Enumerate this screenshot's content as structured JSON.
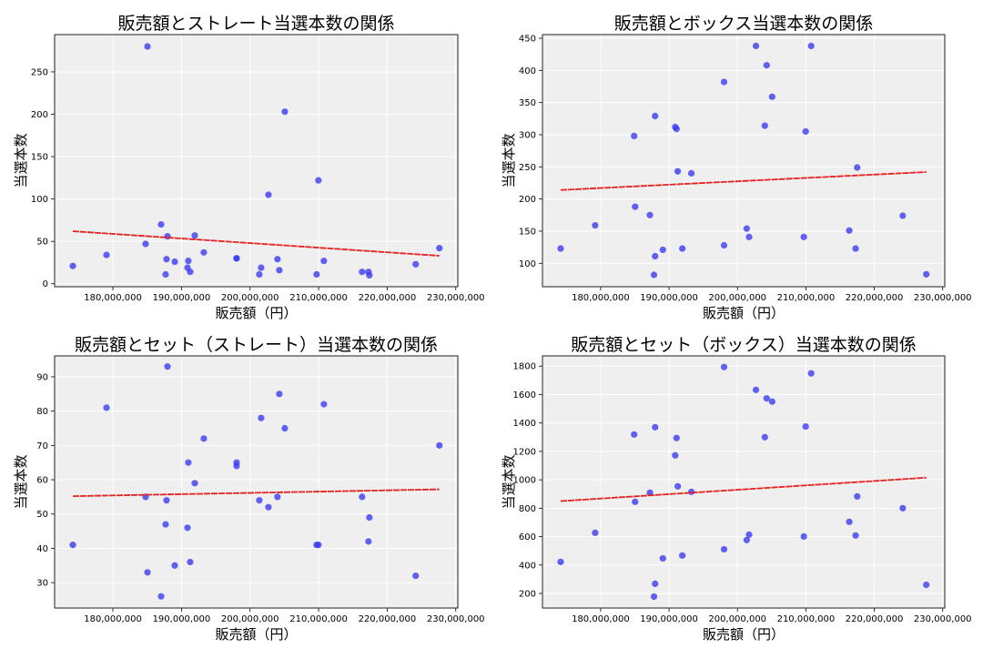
{
  "chart_data": [
    {
      "type": "scatter",
      "title": "販売額とストレート当選本数の関係",
      "xlabel": "販売額（円）",
      "ylabel": "当選本数",
      "xlim": [
        171500000,
        230300000
      ],
      "ylim": [
        -3.5,
        294
      ],
      "xticks": [
        180000000,
        190000000,
        200000000,
        210000000,
        220000000,
        230000000
      ],
      "xtick_labels": [
        "180,000,000",
        "190,000,000",
        "200,000,000",
        "210,000,000",
        "220,000,000",
        "230,000,000"
      ],
      "yticks": [
        0,
        50,
        100,
        150,
        200,
        250
      ],
      "ytick_labels": [
        "0",
        "50",
        "100",
        "150",
        "200",
        "250"
      ],
      "grid": true,
      "points": [
        [
          174160000,
          21
        ],
        [
          179070000,
          34
        ],
        [
          184770000,
          47
        ],
        [
          185040000,
          280
        ],
        [
          187030000,
          70
        ],
        [
          187960000,
          56
        ],
        [
          187820000,
          29
        ],
        [
          187690000,
          11
        ],
        [
          189020000,
          26
        ],
        [
          191000000,
          27
        ],
        [
          190880000,
          19
        ],
        [
          191270000,
          14
        ],
        [
          191940000,
          57
        ],
        [
          193260000,
          37
        ],
        [
          198040000,
          30
        ],
        [
          198040000,
          30
        ],
        [
          201350000,
          11
        ],
        [
          201620000,
          19
        ],
        [
          202680000,
          105
        ],
        [
          204000000,
          29
        ],
        [
          204270000,
          16
        ],
        [
          205070000,
          203
        ],
        [
          209970000,
          122
        ],
        [
          209710000,
          11
        ],
        [
          210770000,
          27
        ],
        [
          216340000,
          14
        ],
        [
          217270000,
          14
        ],
        [
          217400000,
          10
        ],
        [
          224160000,
          23
        ],
        [
          227610000,
          42
        ]
      ],
      "trend": [
        [
          174160000,
          62
        ],
        [
          227610000,
          33
        ]
      ]
    },
    {
      "type": "scatter",
      "title": "販売額とボックス当選本数の関係",
      "xlabel": "販売額（円）",
      "ylabel": "当選本数",
      "xlim": [
        171500000,
        230300000
      ],
      "ylim": [
        63.6,
        455.7
      ],
      "xticks": [
        180000000,
        190000000,
        200000000,
        210000000,
        220000000,
        230000000
      ],
      "xtick_labels": [
        "180,000,000",
        "190,000,000",
        "200,000,000",
        "210,000,000",
        "220,000,000",
        "230,000,000"
      ],
      "yticks": [
        100,
        150,
        200,
        250,
        300,
        350,
        400,
        450
      ],
      "ytick_labels": [
        "100",
        "150",
        "200",
        "250",
        "300",
        "350",
        "400",
        "450"
      ],
      "grid": true,
      "points": [
        [
          174160000,
          123
        ],
        [
          179200000,
          159
        ],
        [
          184900000,
          298
        ],
        [
          185040000,
          188
        ],
        [
          187200000,
          175
        ],
        [
          187960000,
          329
        ],
        [
          187960000,
          111
        ],
        [
          187800000,
          82
        ],
        [
          189100000,
          121
        ],
        [
          190900000,
          312
        ],
        [
          191100000,
          309
        ],
        [
          191270000,
          243
        ],
        [
          191940000,
          123
        ],
        [
          193260000,
          240
        ],
        [
          198040000,
          382
        ],
        [
          198040000,
          128
        ],
        [
          201350000,
          154
        ],
        [
          201700000,
          141
        ],
        [
          202700000,
          438
        ],
        [
          204000000,
          314
        ],
        [
          204270000,
          408
        ],
        [
          205070000,
          359
        ],
        [
          209970000,
          305
        ],
        [
          209700000,
          141
        ],
        [
          210770000,
          438
        ],
        [
          216340000,
          151
        ],
        [
          217270000,
          123
        ],
        [
          217500000,
          249
        ],
        [
          224160000,
          174
        ],
        [
          227600000,
          83
        ]
      ],
      "trend": [
        [
          174160000,
          214
        ],
        [
          227610000,
          242
        ]
      ]
    },
    {
      "type": "scatter",
      "title": "販売額とセット（ストレート）当選本数の関係",
      "xlabel": "販売額（円）",
      "ylabel": "当選本数",
      "xlim": [
        171500000,
        230300000
      ],
      "ylim": [
        22.6,
        96.1
      ],
      "xticks": [
        180000000,
        190000000,
        200000000,
        210000000,
        220000000,
        230000000
      ],
      "xtick_labels": [
        "180,000,000",
        "190,000,000",
        "200,000,000",
        "210,000,000",
        "220,000,000",
        "230,000,000"
      ],
      "yticks": [
        30,
        40,
        50,
        60,
        70,
        80,
        90
      ],
      "ytick_labels": [
        "30",
        "40",
        "50",
        "60",
        "70",
        "80",
        "90"
      ],
      "grid": true,
      "points": [
        [
          174160000,
          41
        ],
        [
          179070000,
          81
        ],
        [
          184770000,
          55
        ],
        [
          185040000,
          33
        ],
        [
          187030000,
          26
        ],
        [
          187960000,
          93
        ],
        [
          187820000,
          54
        ],
        [
          187690000,
          47
        ],
        [
          189020000,
          35
        ],
        [
          191000000,
          65
        ],
        [
          190880000,
          46
        ],
        [
          191270000,
          36
        ],
        [
          191940000,
          59
        ],
        [
          193260000,
          72
        ],
        [
          198040000,
          65
        ],
        [
          198040000,
          64
        ],
        [
          201350000,
          54
        ],
        [
          201620000,
          78
        ],
        [
          202680000,
          52
        ],
        [
          204000000,
          55
        ],
        [
          204270000,
          85
        ],
        [
          205070000,
          75
        ],
        [
          209970000,
          41
        ],
        [
          209710000,
          41
        ],
        [
          210770000,
          82
        ],
        [
          216340000,
          55
        ],
        [
          217270000,
          42
        ],
        [
          217400000,
          49
        ],
        [
          224160000,
          32
        ],
        [
          227610000,
          70
        ]
      ],
      "trend": [
        [
          174160000,
          55.2
        ],
        [
          227610000,
          57.2
        ]
      ]
    },
    {
      "type": "scatter",
      "title": "販売額とセット（ボックス）当選本数の関係",
      "xlabel": "販売額（円）",
      "ylabel": "当選本数",
      "xlim": [
        171500000,
        230300000
      ],
      "ylim": [
        97.5,
        1872
      ],
      "xticks": [
        180000000,
        190000000,
        200000000,
        210000000,
        220000000,
        230000000
      ],
      "xtick_labels": [
        "180,000,000",
        "190,000,000",
        "200,000,000",
        "210,000,000",
        "220,000,000",
        "230,000,000"
      ],
      "yticks": [
        200,
        400,
        600,
        800,
        1000,
        1200,
        1400,
        1600,
        1800
      ],
      "ytick_labels": [
        "200",
        "400",
        "600",
        "800",
        "1000",
        "1200",
        "1400",
        "1600",
        "1800"
      ],
      "grid": true,
      "points": [
        [
          174160000,
          422
        ],
        [
          179200000,
          627
        ],
        [
          184900000,
          1319
        ],
        [
          185040000,
          845
        ],
        [
          187200000,
          909
        ],
        [
          187960000,
          1370
        ],
        [
          187960000,
          268
        ],
        [
          187800000,
          178
        ],
        [
          189100000,
          447
        ],
        [
          190900000,
          1172
        ],
        [
          191100000,
          1294
        ],
        [
          191270000,
          954
        ],
        [
          191940000,
          467
        ],
        [
          193260000,
          915
        ],
        [
          198040000,
          1794
        ],
        [
          198040000,
          511
        ],
        [
          201350000,
          576
        ],
        [
          201700000,
          614
        ],
        [
          202700000,
          1633
        ],
        [
          204000000,
          1300
        ],
        [
          204270000,
          1573
        ],
        [
          205070000,
          1550
        ],
        [
          209970000,
          1375
        ],
        [
          209700000,
          601
        ],
        [
          210770000,
          1749
        ],
        [
          216340000,
          704
        ],
        [
          217270000,
          608
        ],
        [
          217500000,
          883
        ],
        [
          224160000,
          800
        ],
        [
          227600000,
          261
        ]
      ],
      "trend": [
        [
          174160000,
          850
        ],
        [
          227610000,
          1015
        ]
      ]
    }
  ],
  "colors": {
    "points": "#3b3bf0",
    "trend": "#e82020",
    "plot_bg": "#efefef",
    "grid": "#ffffff"
  }
}
